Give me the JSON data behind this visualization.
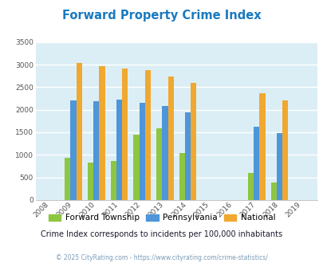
{
  "title": "Forward Property Crime Index",
  "title_color": "#1a7abf",
  "years": [
    2008,
    2009,
    2010,
    2011,
    2012,
    2013,
    2014,
    2015,
    2016,
    2017,
    2018,
    2019
  ],
  "forward_township": [
    0,
    930,
    820,
    860,
    1450,
    1590,
    1040,
    0,
    0,
    590,
    380,
    0
  ],
  "pennsylvania": [
    0,
    2200,
    2180,
    2230,
    2160,
    2080,
    1940,
    0,
    0,
    1630,
    1490,
    0
  ],
  "national": [
    0,
    3030,
    2960,
    2910,
    2870,
    2730,
    2590,
    0,
    0,
    2360,
    2210,
    0
  ],
  "color_forward": "#8dc641",
  "color_pa": "#4d96d9",
  "color_national": "#f0a830",
  "bg_color": "#dceef5",
  "ylim": [
    0,
    3500
  ],
  "yticks": [
    0,
    500,
    1000,
    1500,
    2000,
    2500,
    3000,
    3500
  ],
  "legend_labels": [
    "Forward Township",
    "Pennsylvania",
    "National"
  ],
  "note": "Crime Index corresponds to incidents per 100,000 inhabitants",
  "note_color": "#1a1a2e",
  "copyright": "© 2025 CityRating.com - https://www.cityrating.com/crime-statistics/",
  "copyright_color": "#7a9cb8",
  "grid_color": "#ffffff",
  "bar_width": 0.25
}
